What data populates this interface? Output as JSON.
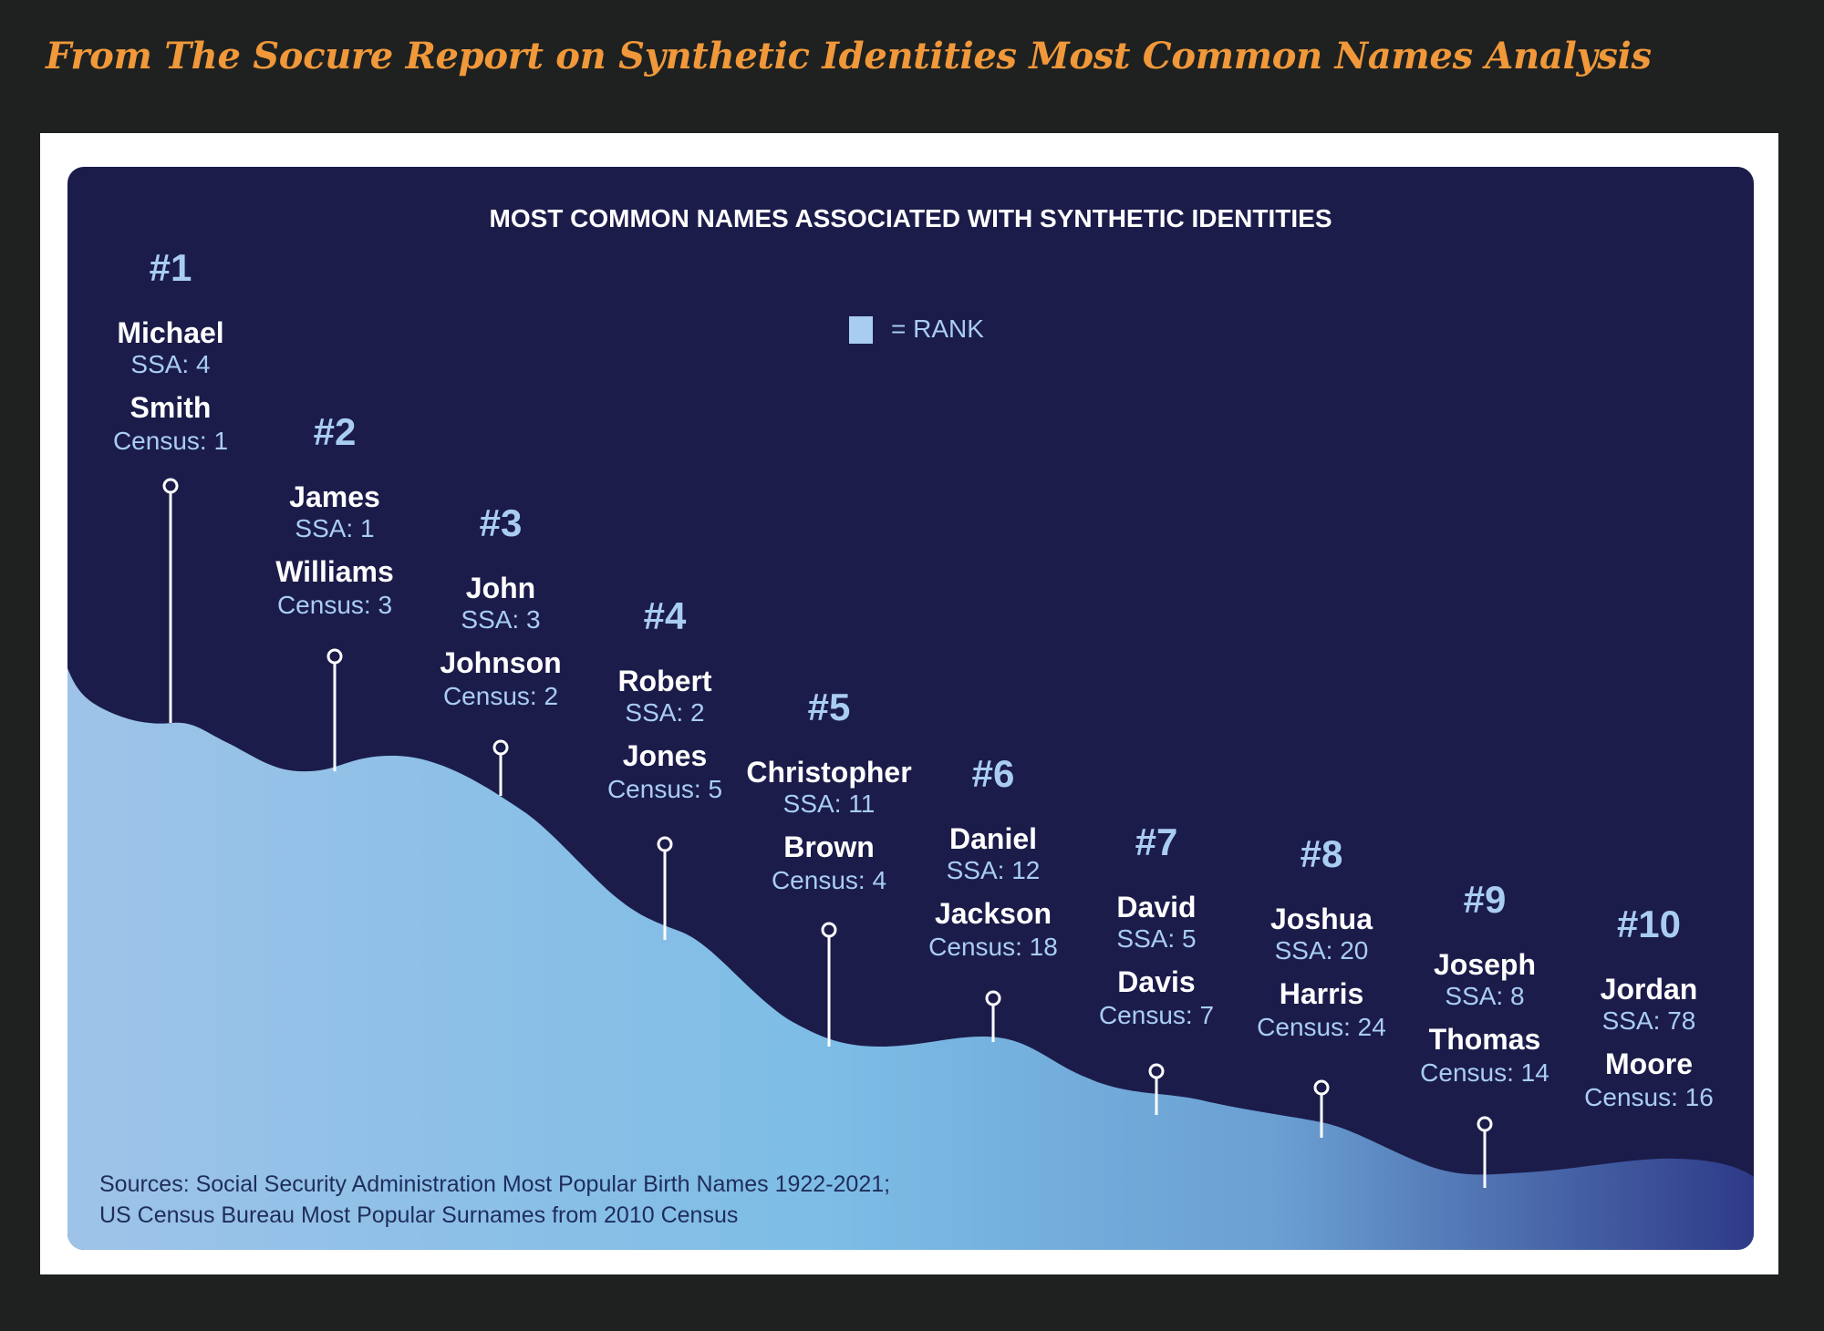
{
  "header": {
    "title": "From The Socure Report on Synthetic Identities Most Common Names Analysis"
  },
  "chart_data": {
    "type": "area",
    "title": "MOST COMMON NAMES ASSOCIATED WITH SYNTHETIC IDENTITIES",
    "legend": {
      "label": "= RANK",
      "color": "#a9cdf0",
      "placement": "top-center"
    },
    "ranks": [
      {
        "rank": "#1",
        "first_name": "Michael",
        "first_label": "SSA: 4",
        "surname": "Smith",
        "surname_label": "Census: 1"
      },
      {
        "rank": "#2",
        "first_name": "James",
        "first_label": "SSA: 1",
        "surname": "Williams",
        "surname_label": "Census: 3"
      },
      {
        "rank": "#3",
        "first_name": "John",
        "first_label": "SSA: 3",
        "surname": "Johnson",
        "surname_label": "Census: 2"
      },
      {
        "rank": "#4",
        "first_name": "Robert",
        "first_label": "SSA: 2",
        "surname": "Jones",
        "surname_label": "Census: 5"
      },
      {
        "rank": "#5",
        "first_name": "Christopher",
        "first_label": "SSA: 11",
        "surname": "Brown",
        "surname_label": "Census: 4"
      },
      {
        "rank": "#6",
        "first_name": "Daniel",
        "first_label": "SSA: 12",
        "surname": "Jackson",
        "surname_label": "Census: 18"
      },
      {
        "rank": "#7",
        "first_name": "David",
        "first_label": "SSA: 5",
        "surname": "Davis",
        "surname_label": "Census: 7"
      },
      {
        "rank": "#8",
        "first_name": "Joshua",
        "first_label": "SSA: 20",
        "surname": "Harris",
        "surname_label": "Census: 24"
      },
      {
        "rank": "#9",
        "first_name": "Joseph",
        "first_label": "SSA: 8",
        "surname": "Thomas",
        "surname_label": "Census: 14"
      },
      {
        "rank": "#10",
        "first_name": "Jordan",
        "first_label": "SSA: 78",
        "surname": "Moore",
        "surname_label": "Census: 16"
      }
    ],
    "sources": [
      "Sources: Social Security Administration Most Popular Birth Names 1922-2021;",
      "US Census Bureau Most Popular Surnames from 2010 Census"
    ],
    "colors": {
      "panel": "#1b1c4a",
      "rank": "#a9cdf0",
      "name": "#ffffff",
      "area_start": "#9ec3e8",
      "area_mid": "#7dbde6",
      "area_end": "#2e3a88"
    }
  }
}
